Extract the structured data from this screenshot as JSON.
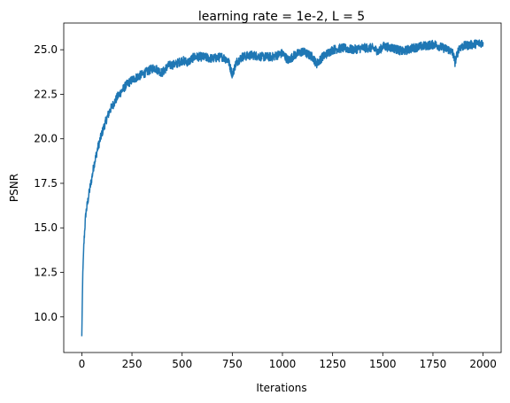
{
  "chart_data": {
    "type": "line",
    "title": "learning rate = 1e-2, L = 5",
    "xlabel": "Iterations",
    "ylabel": "PSNR",
    "xlim": [
      -90,
      2090
    ],
    "ylim": [
      8.0,
      26.5
    ],
    "xticks": [
      0,
      250,
      500,
      750,
      1000,
      1250,
      1500,
      1750,
      2000
    ],
    "xtick_labels": [
      "0",
      "250",
      "500",
      "750",
      "1000",
      "1250",
      "1500",
      "1750",
      "2000"
    ],
    "yticks": [
      10.0,
      12.5,
      15.0,
      17.5,
      20.0,
      22.5,
      25.0
    ],
    "ytick_labels": [
      "10.0",
      "12.5",
      "15.0",
      "17.5",
      "20.0",
      "22.5",
      "25.0"
    ],
    "grid": false,
    "line_color": "#1f77b4",
    "series": [
      {
        "x": [
          0,
          2,
          5,
          10,
          15,
          20,
          30,
          40,
          50,
          60,
          70,
          80,
          90,
          100,
          120,
          140,
          160,
          180,
          200,
          220,
          250,
          280,
          300,
          330,
          360,
          400,
          430,
          470,
          500,
          530,
          560,
          600,
          650,
          700,
          730,
          750,
          770,
          800,
          850,
          900,
          950,
          1000,
          1030,
          1060,
          1100,
          1150,
          1170,
          1200,
          1250,
          1300,
          1350,
          1400,
          1450,
          1480,
          1500,
          1550,
          1600,
          1650,
          1700,
          1760,
          1800,
          1830,
          1850,
          1860,
          1880,
          1900,
          1950,
          2000
        ],
        "y": [
          8.9,
          10.5,
          12.5,
          14.0,
          15.0,
          15.8,
          16.5,
          17.2,
          17.8,
          18.5,
          19.0,
          19.5,
          19.9,
          20.3,
          21.0,
          21.6,
          22.0,
          22.4,
          22.7,
          23.0,
          23.3,
          23.5,
          23.6,
          23.8,
          24.0,
          23.7,
          24.1,
          24.2,
          24.4,
          24.3,
          24.6,
          24.6,
          24.5,
          24.6,
          24.4,
          23.6,
          24.3,
          24.6,
          24.7,
          24.6,
          24.6,
          24.8,
          24.4,
          24.7,
          24.9,
          24.6,
          24.2,
          24.6,
          25.0,
          25.1,
          25.0,
          25.1,
          25.1,
          24.9,
          25.2,
          25.1,
          24.9,
          25.1,
          25.2,
          25.3,
          25.1,
          25.0,
          24.8,
          24.3,
          25.1,
          25.2,
          25.3,
          25.4
        ],
        "noise": 0.25
      }
    ]
  }
}
